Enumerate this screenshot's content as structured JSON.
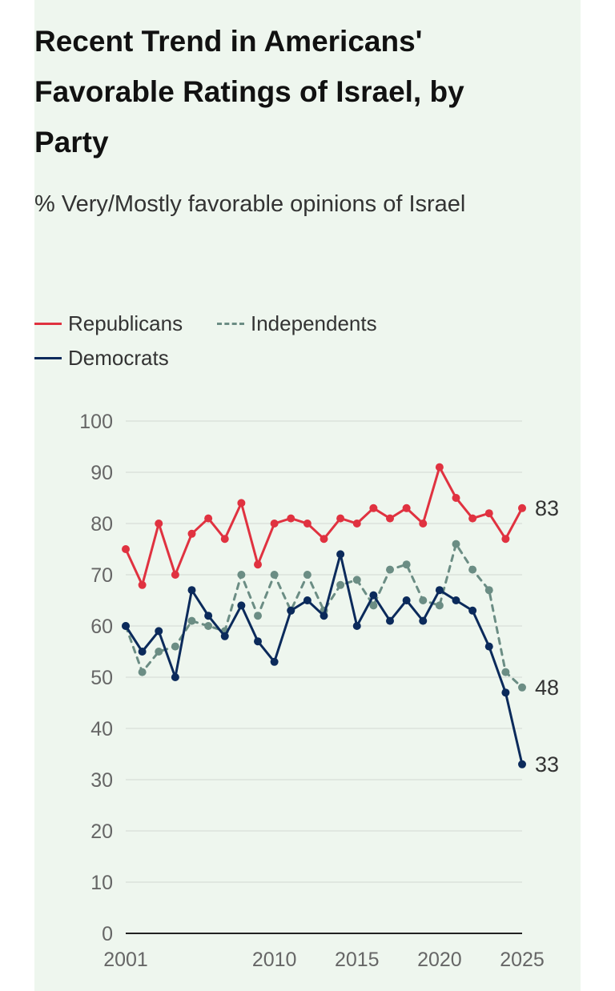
{
  "title": "Recent Trend in Americans' Favorable Ratings of Israel, by Party",
  "subtitle": "% Very/Mostly favorable opinions of Israel",
  "legend": {
    "republicans": "Republicans",
    "independents": "Independents",
    "democrats": "Democrats"
  },
  "chart_data": {
    "type": "line",
    "title": "Recent Trend in Americans' Favorable Ratings of Israel, by Party",
    "subtitle": "% Very/Mostly favorable opinions of Israel",
    "xlabel": "",
    "ylabel": "",
    "xlim": [
      2001,
      2025
    ],
    "ylim": [
      0,
      100
    ],
    "x_ticks": [
      "2001",
      "2010",
      "2015",
      "2020",
      "2025"
    ],
    "y_ticks": [
      "0",
      "10",
      "20",
      "30",
      "40",
      "50",
      "60",
      "70",
      "80",
      "90",
      "100"
    ],
    "grid": true,
    "legend_position": "top-left",
    "x": [
      2001,
      2002,
      2003,
      2004,
      2005,
      2006,
      2007,
      2008,
      2009,
      2010,
      2011,
      2012,
      2013,
      2014,
      2015,
      2016,
      2017,
      2018,
      2019,
      2020,
      2021,
      2022,
      2023,
      2024,
      2025
    ],
    "series": [
      {
        "name": "Republicans",
        "color": "#e03240",
        "style": "solid",
        "values": [
          75,
          68,
          80,
          70,
          78,
          81,
          77,
          84,
          72,
          80,
          81,
          80,
          77,
          81,
          80,
          83,
          81,
          83,
          80,
          91,
          85,
          81,
          82,
          77,
          83
        ],
        "end_label": "83"
      },
      {
        "name": "Independents",
        "color": "#6b8d84",
        "style": "dashed",
        "values": [
          60,
          51,
          55,
          56,
          61,
          60,
          59,
          70,
          62,
          70,
          63,
          70,
          63,
          68,
          69,
          64,
          71,
          72,
          65,
          64,
          76,
          71,
          67,
          51,
          48
        ],
        "end_label": "48"
      },
      {
        "name": "Democrats",
        "color": "#0b2a5b",
        "style": "solid",
        "values": [
          60,
          55,
          59,
          50,
          67,
          62,
          58,
          64,
          57,
          53,
          63,
          65,
          62,
          74,
          60,
          66,
          61,
          65,
          61,
          67,
          65,
          63,
          56,
          47,
          33
        ],
        "end_label": "33"
      }
    ]
  }
}
